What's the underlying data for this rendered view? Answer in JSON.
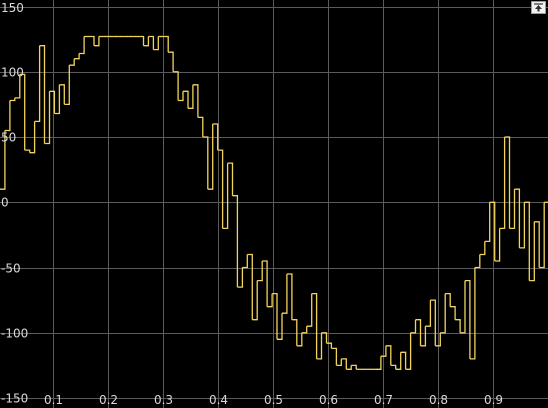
{
  "toolbar": {
    "restore_icon": "maximize-restore-icon"
  },
  "colors": {
    "background": "#000000",
    "grid": "#5a5a5a",
    "signal": "#f2d35b",
    "tick_text": "#d8d8d8"
  },
  "chart_data": {
    "type": "line",
    "title": "",
    "xlabel": "",
    "ylabel": "",
    "grid": true,
    "xlim": [
      0.003,
      1.0
    ],
    "ylim": [
      -150,
      155
    ],
    "x_ticks": [
      0.1,
      0.2,
      0.3,
      0.4,
      0.5,
      0.6,
      0.7,
      0.8,
      0.9
    ],
    "x_tick_labels": [
      "0.1",
      "0.2",
      "0.3",
      "0.4",
      "0.5",
      "0.6",
      "0.7",
      "0.8",
      "0.9"
    ],
    "y_ticks": [
      150,
      100,
      50,
      0,
      -50,
      -100,
      -150
    ],
    "y_tick_labels": [
      "150",
      "100",
      "50",
      "0",
      "-50",
      "-100",
      "-150"
    ],
    "series": [
      {
        "style": "stairs",
        "color": "#f2d35b",
        "x": [
          0.003,
          0.012,
          0.021,
          0.03,
          0.039,
          0.048,
          0.057,
          0.066,
          0.075,
          0.084,
          0.093,
          0.102,
          0.111,
          0.12,
          0.129,
          0.138,
          0.147,
          0.156,
          0.165,
          0.174,
          0.183,
          0.192,
          0.201,
          0.21,
          0.219,
          0.228,
          0.237,
          0.246,
          0.255,
          0.264,
          0.273,
          0.282,
          0.291,
          0.3,
          0.309,
          0.318,
          0.327,
          0.336,
          0.345,
          0.354,
          0.363,
          0.372,
          0.381,
          0.39,
          0.399,
          0.408,
          0.417,
          0.426,
          0.435,
          0.444,
          0.453,
          0.462,
          0.471,
          0.48,
          0.489,
          0.498,
          0.507,
          0.516,
          0.525,
          0.534,
          0.543,
          0.552,
          0.561,
          0.57,
          0.579,
          0.588,
          0.597,
          0.606,
          0.615,
          0.624,
          0.633,
          0.642,
          0.651,
          0.66,
          0.669,
          0.678,
          0.687,
          0.696,
          0.705,
          0.714,
          0.723,
          0.732,
          0.741,
          0.75,
          0.759,
          0.768,
          0.777,
          0.786,
          0.795,
          0.804,
          0.813,
          0.822,
          0.831,
          0.84,
          0.849,
          0.858,
          0.867,
          0.876,
          0.885,
          0.894,
          0.903,
          0.912,
          0.921,
          0.93,
          0.939,
          0.948,
          0.957,
          0.966,
          0.975,
          0.984,
          0.993
        ],
        "values": [
          10,
          55,
          78,
          80,
          98,
          40,
          38,
          62,
          120,
          45,
          85,
          68,
          90,
          75,
          105,
          110,
          114,
          127,
          127,
          120,
          127,
          127,
          127,
          127,
          127,
          127,
          127,
          127,
          127,
          120,
          127,
          117,
          127,
          127,
          115,
          100,
          78,
          85,
          72,
          90,
          65,
          50,
          10,
          60,
          40,
          -20,
          30,
          5,
          -65,
          -50,
          -40,
          -90,
          -60,
          -45,
          -80,
          -70,
          -105,
          -85,
          -55,
          -90,
          -110,
          -100,
          -95,
          -70,
          -120,
          -100,
          -108,
          -112,
          -125,
          -120,
          -128,
          -125,
          -128,
          -128,
          -128,
          -128,
          -128,
          -118,
          -110,
          -125,
          -128,
          -115,
          -128,
          -100,
          -90,
          -110,
          -95,
          -75,
          -110,
          -100,
          -70,
          -80,
          -90,
          -100,
          -60,
          -120,
          -50,
          -40,
          -30,
          0,
          -45,
          -20,
          50,
          -20,
          10,
          -35,
          0,
          -60,
          -15,
          -50,
          0
        ]
      }
    ]
  }
}
